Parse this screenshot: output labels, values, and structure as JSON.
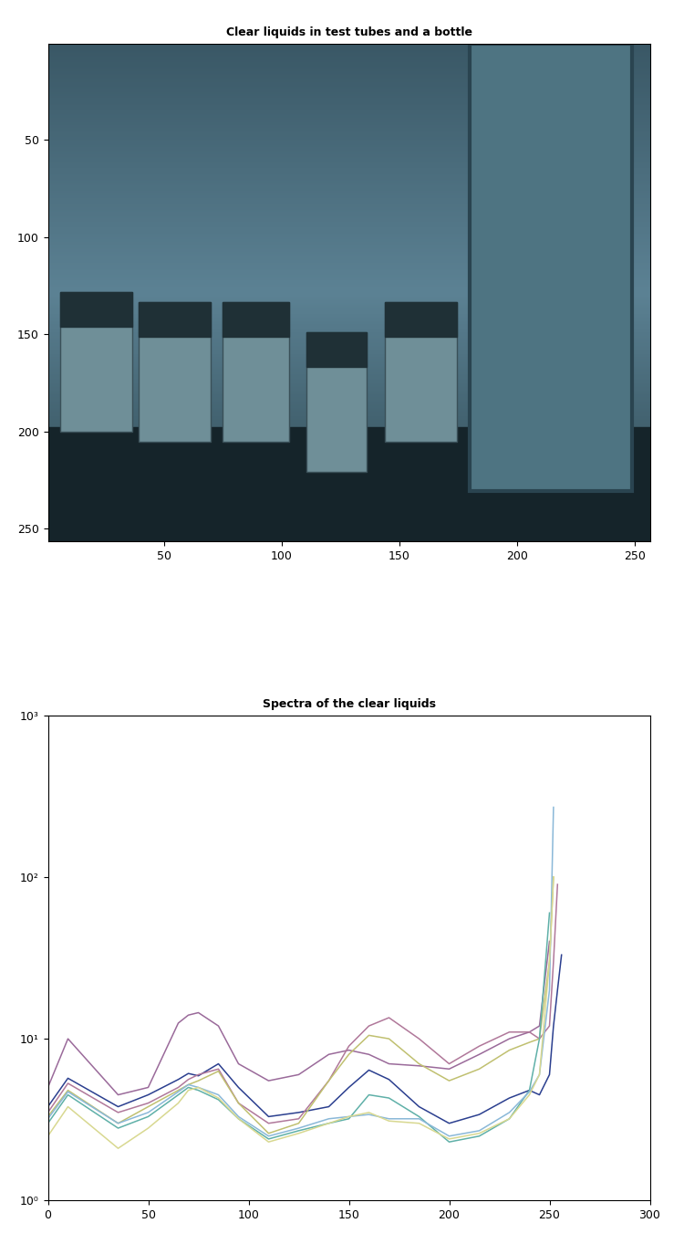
{
  "chart_data": [
    {
      "type": "image",
      "title": "Clear liquids in test tubes and a bottle",
      "xlim": [
        0.5,
        256.5
      ],
      "ylim": [
        256.5,
        0.5
      ],
      "xticks": [
        50,
        100,
        150,
        200,
        250
      ],
      "yticks": [
        50,
        100,
        150,
        200,
        250
      ]
    },
    {
      "type": "line",
      "title": "Spectra of the clear liquids",
      "log": "y",
      "x": [
        0,
        10,
        35,
        50,
        65,
        70,
        75,
        85,
        95,
        110,
        125,
        140,
        150,
        160,
        170,
        185,
        200,
        215,
        230,
        240,
        245,
        250,
        252,
        254,
        256
      ],
      "series": [
        {
          "color": "#9a6a9a",
          "values": [
            5,
            10,
            4.5,
            5,
            12.5,
            14,
            14.5,
            12,
            7,
            5.5,
            6,
            8,
            8.5,
            8,
            7,
            6.8,
            6.5,
            8,
            10,
            11,
            12,
            40,
            null,
            null,
            null
          ]
        },
        {
          "color": "#2b3f8f",
          "values": [
            3.8,
            5.7,
            3.8,
            4.5,
            5.6,
            6.1,
            5.9,
            7,
            5,
            3.3,
            3.5,
            3.8,
            5,
            6.4,
            5.6,
            3.8,
            3,
            3.4,
            4.3,
            4.8,
            4.5,
            6,
            12,
            20,
            33
          ]
        },
        {
          "color": "#b0789a",
          "values": [
            3.5,
            5.3,
            3.5,
            4,
            5,
            5.6,
            6,
            6.5,
            4,
            3,
            3.2,
            5.5,
            9,
            12,
            13.5,
            10,
            7,
            9,
            11,
            11,
            10,
            12,
            30,
            90,
            null
          ]
        },
        {
          "color": "#c0c070",
          "values": [
            3.3,
            4.8,
            3,
            3.8,
            4.8,
            5.2,
            5.5,
            6.3,
            4,
            2.6,
            3,
            5.5,
            8,
            10.5,
            10,
            7,
            5.5,
            6.5,
            8.5,
            9.5,
            10,
            30,
            100,
            null,
            null
          ]
        },
        {
          "color": "#5fb0a8",
          "values": [
            3,
            4.5,
            2.8,
            3.3,
            4.5,
            5,
            4.8,
            4.2,
            3.2,
            2.4,
            2.7,
            3,
            3.2,
            4.5,
            4.3,
            3.3,
            2.3,
            2.5,
            3.2,
            4.8,
            10,
            60,
            null,
            null,
            null
          ]
        },
        {
          "color": "#8ab8d8",
          "values": [
            3.2,
            4.7,
            3,
            3.5,
            4.7,
            5.2,
            5,
            4.5,
            3.3,
            2.5,
            2.8,
            3.2,
            3.3,
            3.4,
            3.2,
            3.2,
            2.5,
            2.7,
            3.5,
            4.7,
            6,
            20,
            270,
            null,
            null
          ]
        },
        {
          "color": "#d8d890",
          "values": [
            2.5,
            3.8,
            2.1,
            2.8,
            4,
            4.8,
            5,
            4.3,
            3.2,
            2.3,
            2.6,
            3,
            3.3,
            3.5,
            3.1,
            3,
            2.4,
            2.6,
            3.2,
            4.5,
            6,
            30,
            100,
            null,
            null
          ]
        }
      ],
      "xlim": [
        0,
        300
      ],
      "xticks": [
        0,
        50,
        100,
        150,
        200,
        250,
        300
      ],
      "ylim": [
        1,
        1000
      ],
      "yticks": [
        {
          "value": 1,
          "label": "10⁰"
        },
        {
          "value": 10,
          "label": "10¹"
        },
        {
          "value": 100,
          "label": "10²"
        },
        {
          "value": 1000,
          "label": "10³"
        }
      ]
    }
  ]
}
